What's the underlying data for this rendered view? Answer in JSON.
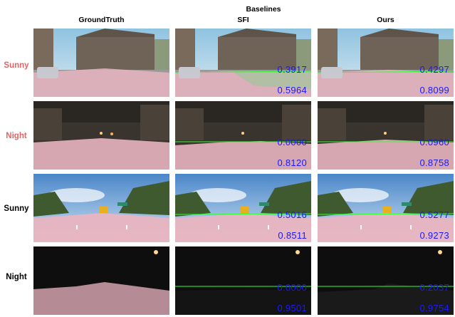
{
  "headers": {
    "baselines": "Baselines",
    "groundtruth": "GroundTruth",
    "sfi": "SFI",
    "ours": "Ours"
  },
  "rows": [
    {
      "label": "Sunny",
      "label_color": "#e06666",
      "sfi_top": "0.3917",
      "sfi_bottom": "0.5964",
      "ours_top": "0.4297",
      "ours_bottom": "0.8099"
    },
    {
      "label": "Night",
      "label_color": "#e06666",
      "sfi_top": "0.0000",
      "sfi_bottom": "0.8120",
      "ours_top": "0.0960",
      "ours_bottom": "0.8758"
    },
    {
      "label": "Sunny",
      "label_color": "#000000",
      "sfi_top": "0.5016",
      "sfi_bottom": "0.8511",
      "ours_top": "0.5277",
      "ours_bottom": "0.9273"
    },
    {
      "label": "Night",
      "label_color": "#000000",
      "sfi_top": "0.0000",
      "sfi_bottom": "0.9501",
      "ours_top": "0.2037",
      "ours_bottom": "0.9754"
    }
  ],
  "colors": {
    "score": "#1a1aff",
    "road_mask": "#e8b4c0",
    "horizon_line": "#33ff33"
  }
}
